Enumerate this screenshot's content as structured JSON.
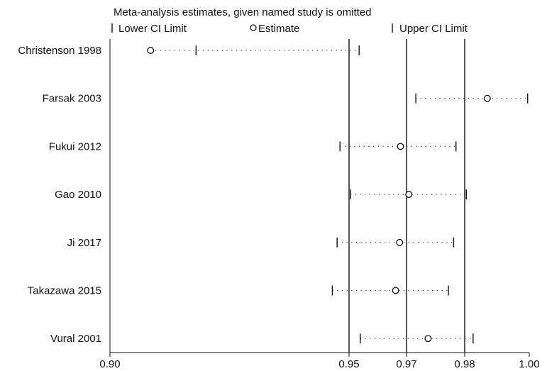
{
  "chart_data": {
    "type": "scatter",
    "title": "Meta-analysis estimates, given named study is omitted",
    "legend": {
      "placement": "top",
      "entries": [
        "Lower CI Limit",
        "Estimate",
        "Upper CI Limit"
      ]
    },
    "xlabel": "",
    "ylabel": "",
    "x_ticks": [
      {
        "value": 0.9,
        "label": "0.90"
      },
      {
        "value": 0.95,
        "label": "0.95"
      },
      {
        "value": 0.97,
        "label": "0.97"
      },
      {
        "value": 0.98,
        "label": "0.98"
      },
      {
        "value": 1.0,
        "label": "1.00"
      }
    ],
    "reference_lines": [
      0.95,
      0.97,
      0.98
    ],
    "studies": [
      {
        "name": "Christenson 1998",
        "lower": 0.918,
        "estimate": 0.9085,
        "upper": 0.9535
      },
      {
        "name": "Farsak 2003",
        "lower": 0.9716,
        "estimate": 0.987,
        "upper": 0.9995
      },
      {
        "name": "Fukui 2012",
        "lower": 0.9481,
        "estimate": 0.9679,
        "upper": 0.9785
      },
      {
        "name": "Gao 2010",
        "lower": 0.9505,
        "estimate": 0.9704,
        "upper": 0.9805
      },
      {
        "name": "Ji 2017",
        "lower": 0.9475,
        "estimate": 0.9676,
        "upper": 0.9781
      },
      {
        "name": "Takazawa 2015",
        "lower": 0.9465,
        "estimate": 0.9662,
        "upper": 0.9772
      },
      {
        "name": "Vural 2001",
        "lower": 0.9539,
        "estimate": 0.9737,
        "upper": 0.9826
      }
    ]
  }
}
